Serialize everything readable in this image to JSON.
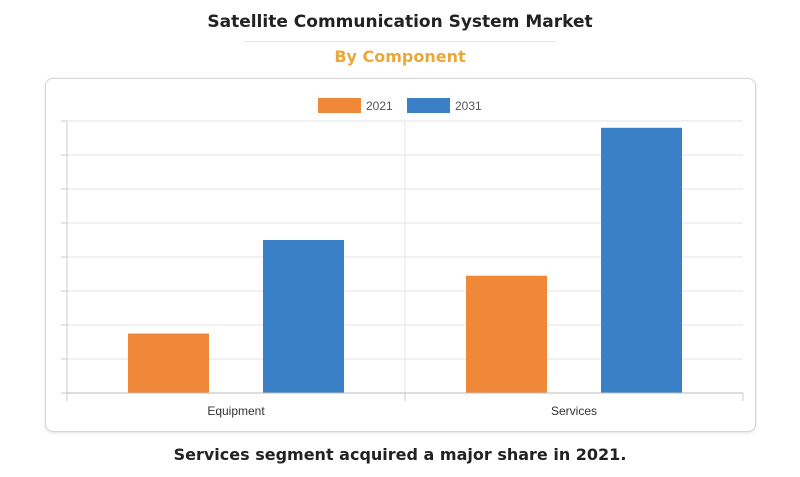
{
  "header": {
    "title": "Satellite Communication System Market",
    "subtitle": "By Component",
    "subtitle_color": "#e8a93a"
  },
  "caption": "Services segment acquired a major share in 2021.",
  "chart_data": {
    "type": "bar",
    "title": "",
    "xlabel": "",
    "ylabel": "",
    "categories": [
      "Equipment",
      "Services"
    ],
    "series": [
      {
        "name": "2021",
        "color": "#f0883a",
        "values": [
          1.75,
          3.45
        ]
      },
      {
        "name": "2031",
        "color": "#3a80c6",
        "values": [
          4.5,
          7.8
        ]
      }
    ],
    "ylim": [
      0,
      8
    ],
    "grid": true,
    "legend": "top-center"
  }
}
